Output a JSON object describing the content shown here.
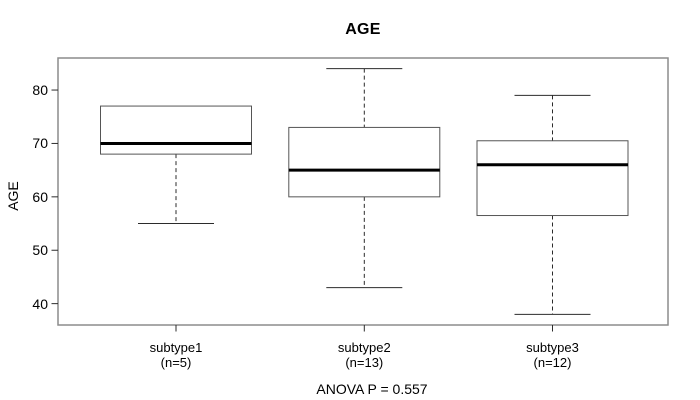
{
  "chart": {
    "title": "AGE",
    "y_axis_label": "AGE",
    "annotation": "ANOVA P = 0.557"
  },
  "colors": {
    "background": "#ffffff",
    "plot_border": "#8c8c8c",
    "box_outline": "#555555",
    "median": "#000000",
    "whisker": "#2b2b2b",
    "tick": "#2b2b2b",
    "text": "#000000"
  },
  "chart_data": {
    "type": "boxplot",
    "title": "AGE",
    "xlabel": "",
    "ylabel": "AGE",
    "ylim": [
      36,
      86
    ],
    "yticks": [
      40,
      50,
      60,
      70,
      80
    ],
    "grid": false,
    "legend": false,
    "annotation": "ANOVA P = 0.557",
    "groups": [
      {
        "label": "subtype1",
        "n_label": "(n=5)",
        "n": 5,
        "whisker_low": 55,
        "q1": 68,
        "median": 70,
        "q3": 77,
        "whisker_high": 77
      },
      {
        "label": "subtype2",
        "n_label": "(n=13)",
        "n": 13,
        "whisker_low": 43,
        "q1": 60,
        "median": 65,
        "q3": 73,
        "whisker_high": 84
      },
      {
        "label": "subtype3",
        "n_label": "(n=12)",
        "n": 12,
        "whisker_low": 38,
        "q1": 56.5,
        "median": 66,
        "q3": 70.5,
        "whisker_high": 79
      }
    ]
  }
}
